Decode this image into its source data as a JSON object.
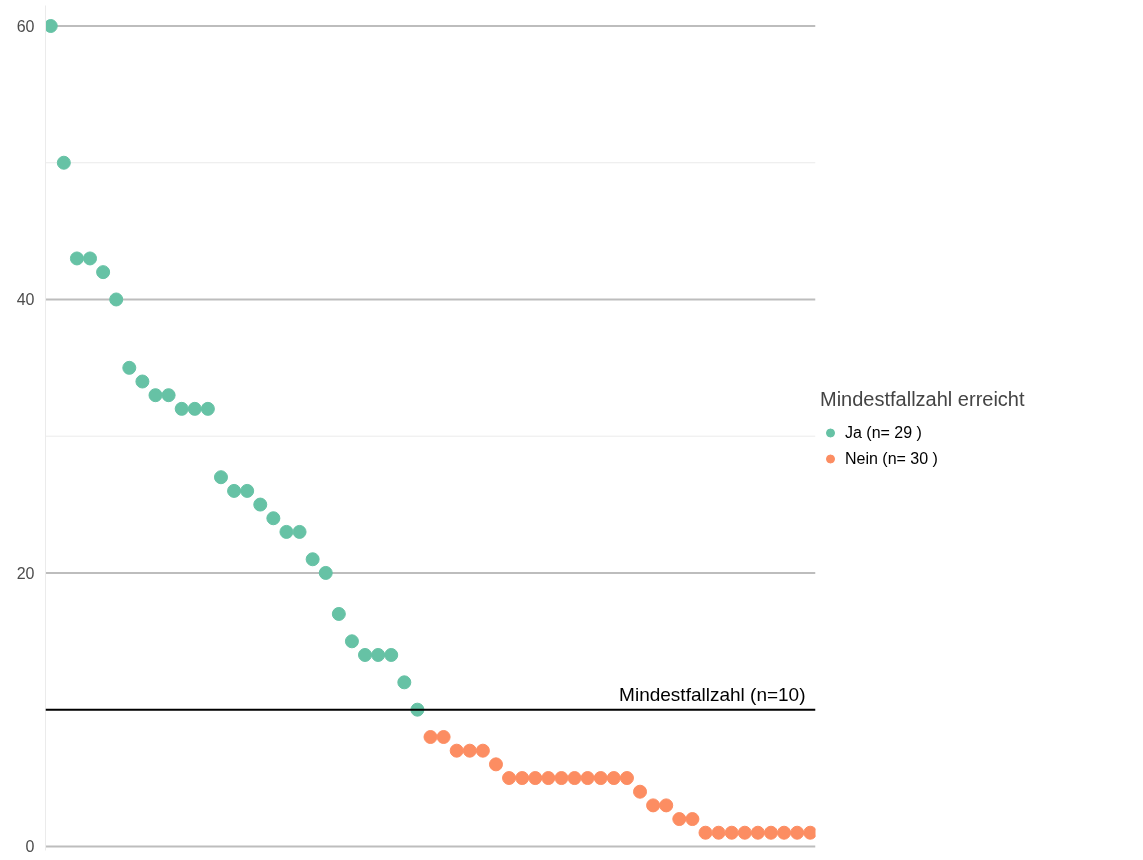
{
  "chart_data": {
    "type": "scatter",
    "legend_title": "Mindestfallzahl erreicht",
    "legend": "right",
    "marker": "circle",
    "grid": "y",
    "categories": [
      null,
      null,
      null,
      null,
      null,
      null,
      null,
      null,
      null,
      null,
      null,
      null,
      null,
      null,
      null,
      null,
      null,
      null,
      null,
      null,
      null,
      null,
      null,
      null,
      null,
      null,
      null,
      null,
      null,
      null,
      null,
      null,
      null,
      null,
      null,
      null,
      null,
      null,
      null,
      null,
      null,
      null,
      null,
      null,
      null,
      null,
      null,
      null,
      null,
      null,
      null,
      null,
      null,
      null,
      null,
      null,
      null,
      null,
      null
    ],
    "series": [
      {
        "name": "Ja (n= 29 )",
        "color": "#66c2a5",
        "values": [
          60,
          50,
          43,
          43,
          42,
          40,
          35,
          34,
          33,
          33,
          32,
          32,
          32,
          27,
          26,
          26,
          25,
          24,
          23,
          23,
          21,
          20,
          17,
          15,
          14,
          14,
          14,
          12,
          10,
          null,
          null,
          null,
          null,
          null,
          null,
          null,
          null,
          null,
          null,
          null,
          null,
          null,
          null,
          null,
          null,
          null,
          null,
          null,
          null,
          null,
          null,
          null,
          null,
          null,
          null,
          null,
          null,
          null,
          null
        ]
      },
      {
        "name": "Nein (n= 30 )",
        "color": "#fc8d62",
        "values": [
          null,
          null,
          null,
          null,
          null,
          null,
          null,
          null,
          null,
          null,
          null,
          null,
          null,
          null,
          null,
          null,
          null,
          null,
          null,
          null,
          null,
          null,
          null,
          null,
          null,
          null,
          null,
          null,
          null,
          8,
          8,
          7,
          7,
          7,
          6,
          5,
          5,
          5,
          5,
          5,
          5,
          5,
          5,
          5,
          5,
          4,
          3,
          3,
          2,
          2,
          1,
          1,
          1,
          1,
          1,
          1,
          1,
          1,
          1
        ]
      }
    ],
    "ylim": [
      -0.3,
      61.5
    ],
    "yticks": [
      0,
      {
        "value": 10,
        "label": null
      },
      20,
      {
        "value": 30,
        "label": null
      },
      40,
      {
        "value": 50,
        "label": null
      },
      60
    ],
    "ref_lines": [
      {
        "axis": "y",
        "value": 10,
        "label": "Mindestfallzahl (n=10)",
        "color": "#000000"
      }
    ]
  }
}
